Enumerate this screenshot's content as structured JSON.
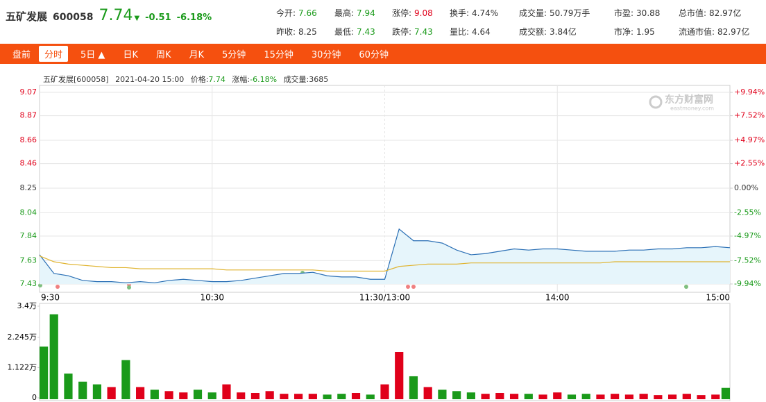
{
  "header": {
    "name": "五矿发展",
    "code": "600058",
    "price": "7.74",
    "arrow": "▼",
    "change": "-0.51",
    "change_pct": "-6.18%"
  },
  "stats": [
    [
      {
        "label": "今开:",
        "value": "7.66",
        "color": "#1a9a1a"
      },
      {
        "label": "最高:",
        "value": "7.94",
        "color": "#1a9a1a"
      },
      {
        "label": "涨停:",
        "value": "9.08",
        "color": "#e0001a"
      },
      {
        "label": "换手:",
        "value": "4.74%",
        "color": "#333"
      },
      {
        "label": "成交量:",
        "value": "50.79万手",
        "color": "#333"
      },
      {
        "label": "市盈:",
        "value": "30.88",
        "color": "#333"
      },
      {
        "label": "总市值:",
        "value": "82.97亿",
        "color": "#333"
      }
    ],
    [
      {
        "label": "昨收:",
        "value": "8.25",
        "color": "#333"
      },
      {
        "label": "最低:",
        "value": "7.43",
        "color": "#1a9a1a"
      },
      {
        "label": "跌停:",
        "value": "7.43",
        "color": "#1a9a1a"
      },
      {
        "label": "量比:",
        "value": "4.64",
        "color": "#333"
      },
      {
        "label": "成交额:",
        "value": "3.84亿",
        "color": "#333"
      },
      {
        "label": "市净:",
        "value": "1.95",
        "color": "#333"
      },
      {
        "label": "流通市值:",
        "value": "82.97亿",
        "color": "#333"
      }
    ]
  ],
  "tabs": [
    "盘前",
    "分时",
    "5日 ▲",
    "日K",
    "周K",
    "月K",
    "5分钟",
    "15分钟",
    "30分钟",
    "60分钟"
  ],
  "info": {
    "name": "五矿发展[600058]",
    "time": "2021-04-20 15:00",
    "price_label": "价格:",
    "price": "7.74",
    "change_label": "涨幅:",
    "change": "-6.18%",
    "volume_label": "成交量:",
    "volume": "3685"
  },
  "watermark": {
    "title": "东方财富网",
    "url": "eastmoney.com"
  },
  "chart_data": [
    {
      "type": "line",
      "xlim": [
        0,
        240
      ],
      "xticks": [
        {
          "value": 0,
          "label": "9:30"
        },
        {
          "value": 60,
          "label": "10:30"
        },
        {
          "value": 120,
          "label": "11:30/13:00"
        },
        {
          "value": 180,
          "label": "14:00"
        },
        {
          "value": 240,
          "label": "15:00"
        }
      ],
      "ylim": [
        7.43,
        9.07
      ],
      "yticks": [
        9.07,
        8.87,
        8.66,
        8.46,
        8.25,
        8.04,
        7.84,
        7.63,
        7.43
      ],
      "y2lim": [
        -9.94,
        9.94
      ],
      "y2ticks": [
        {
          "value": 9.94,
          "label": "+9.94%"
        },
        {
          "value": 7.52,
          "label": "+7.52%"
        },
        {
          "value": 4.97,
          "label": "+4.97%"
        },
        {
          "value": 2.55,
          "label": "+2.55%"
        },
        {
          "value": 0,
          "label": "0.00%"
        },
        {
          "value": -2.55,
          "label": "-2.55%"
        },
        {
          "value": -4.97,
          "label": "-4.97%"
        },
        {
          "value": -7.52,
          "label": "-7.52%"
        },
        {
          "value": -9.94,
          "label": "-9.94%"
        }
      ],
      "up_color": "#e0001a",
      "down_color": "#1a9a1a",
      "flat_color": "#333333",
      "x": [
        0,
        5,
        10,
        15,
        20,
        25,
        30,
        35,
        40,
        45,
        50,
        55,
        60,
        65,
        70,
        75,
        80,
        85,
        90,
        95,
        100,
        105,
        110,
        115,
        120,
        125,
        130,
        135,
        140,
        145,
        150,
        155,
        160,
        165,
        170,
        175,
        180,
        185,
        190,
        195,
        200,
        205,
        210,
        215,
        220,
        225,
        230,
        235,
        240
      ],
      "series": [
        {
          "color": "#2a6fb5",
          "fill": "#e6f5fb",
          "values": [
            7.68,
            7.52,
            7.5,
            7.46,
            7.45,
            7.45,
            7.44,
            7.45,
            7.44,
            7.46,
            7.47,
            7.46,
            7.45,
            7.45,
            7.46,
            7.48,
            7.5,
            7.52,
            7.52,
            7.53,
            7.5,
            7.49,
            7.49,
            7.47,
            7.47,
            7.9,
            7.8,
            7.8,
            7.78,
            7.72,
            7.68,
            7.69,
            7.71,
            7.73,
            7.72,
            7.73,
            7.73,
            7.72,
            7.71,
            7.71,
            7.71,
            7.72,
            7.72,
            7.73,
            7.73,
            7.74,
            7.74,
            7.75,
            7.74
          ]
        },
        {
          "color": "#e0b430",
          "values": [
            7.67,
            7.62,
            7.6,
            7.59,
            7.58,
            7.57,
            7.57,
            7.56,
            7.56,
            7.56,
            7.56,
            7.56,
            7.56,
            7.55,
            7.55,
            7.55,
            7.55,
            7.55,
            7.55,
            7.55,
            7.54,
            7.54,
            7.54,
            7.54,
            7.54,
            7.58,
            7.59,
            7.6,
            7.6,
            7.6,
            7.61,
            7.61,
            7.61,
            7.61,
            7.61,
            7.61,
            7.61,
            7.61,
            7.61,
            7.61,
            7.62,
            7.62,
            7.62,
            7.62,
            7.62,
            7.62,
            7.62,
            7.62,
            7.62
          ]
        }
      ]
    },
    {
      "type": "bar",
      "xlim": [
        0,
        240
      ],
      "ylim": [
        0,
        34000
      ],
      "yticks": [
        {
          "value": 34000,
          "label": "3.4万"
        },
        {
          "value": 22450,
          "label": "2.245万"
        },
        {
          "value": 11220,
          "label": "1.122万"
        },
        0
      ],
      "x": [
        0,
        5,
        10,
        15,
        20,
        25,
        30,
        35,
        40,
        45,
        50,
        55,
        60,
        65,
        70,
        75,
        80,
        85,
        90,
        95,
        100,
        105,
        110,
        115,
        120,
        125,
        130,
        135,
        140,
        145,
        150,
        155,
        160,
        165,
        170,
        175,
        180,
        185,
        190,
        195,
        200,
        205,
        210,
        215,
        220,
        225,
        230,
        235,
        240
      ],
      "values": [
        19000,
        31000,
        9000,
        6000,
        5000,
        4000,
        14000,
        4000,
        3000,
        2500,
        2000,
        3000,
        2000,
        5000,
        2000,
        1800,
        2500,
        1500,
        1500,
        1500,
        1200,
        1500,
        1800,
        1200,
        5000,
        17000,
        8000,
        4000,
        3000,
        2500,
        2000,
        1500,
        1800,
        1500,
        1500,
        1200,
        2000,
        1200,
        1500,
        1200,
        1500,
        1200,
        1500,
        1000,
        1200,
        1500,
        1000,
        1200,
        3685
      ]
    }
  ]
}
